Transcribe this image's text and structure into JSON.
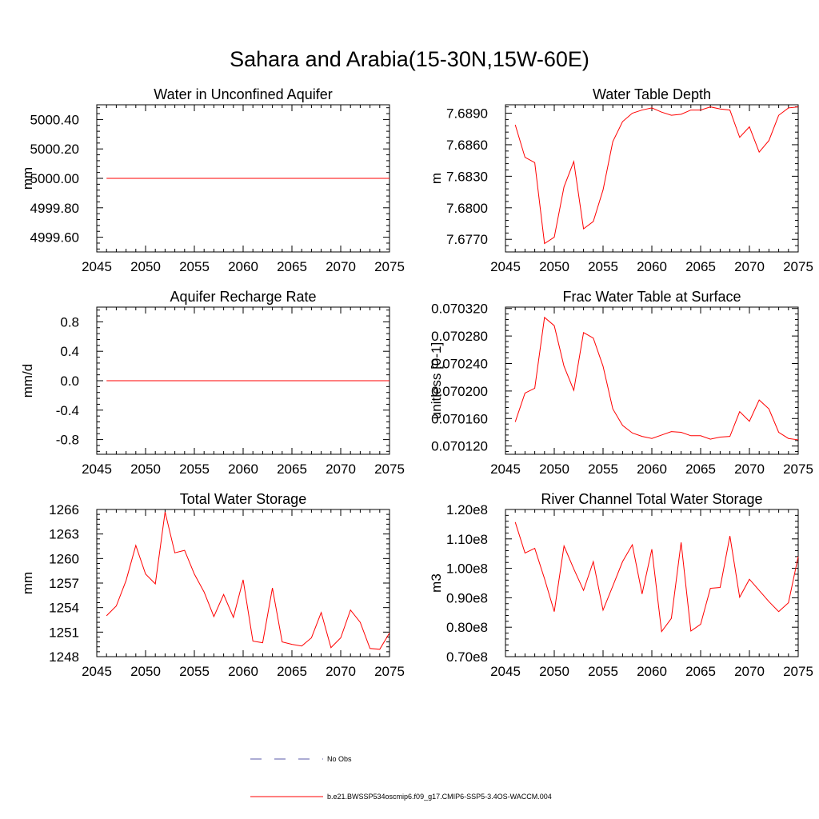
{
  "title": "Sahara and Arabia(15-30N,15W-60E)",
  "colors": {
    "model": "#ff0000",
    "obs": "#5a5aa8",
    "axis": "#000000"
  },
  "legend": [
    {
      "label": "No Obs",
      "style": "dashed",
      "color": "#5a5aa8"
    },
    {
      "label": "b.e21.BWSSP534oscmip6.f09_g17.CMIP6-SSP5-3.4OS-WACCM.004",
      "style": "solid",
      "color": "#ff0000"
    }
  ],
  "chart_data": [
    {
      "type": "line",
      "title": "Water in Unconfined Aquifer",
      "ylabel": "mm",
      "xlim": [
        2045,
        2075
      ],
      "ylim": [
        4999.5,
        5000.5
      ],
      "xticks": [
        2045,
        2050,
        2055,
        2060,
        2065,
        2070,
        2075
      ],
      "xtick_labels": [
        "2045",
        "2050",
        "2055",
        "2060",
        "2065",
        "2070",
        "2075"
      ],
      "yticks": [
        4999.6,
        4999.8,
        5000.0,
        5000.2,
        5000.4
      ],
      "ytick_labels": [
        "4999.60",
        "4999.80",
        "5000.00",
        "5000.20",
        "5000.40"
      ],
      "x": [
        2046,
        2047,
        2048,
        2049,
        2050,
        2051,
        2052,
        2053,
        2054,
        2055,
        2056,
        2057,
        2058,
        2059,
        2060,
        2061,
        2062,
        2063,
        2064,
        2065,
        2066,
        2067,
        2068,
        2069,
        2070,
        2071,
        2072,
        2073,
        2074,
        2075
      ],
      "series": [
        {
          "values": [
            5000,
            5000,
            5000,
            5000,
            5000,
            5000,
            5000,
            5000,
            5000,
            5000,
            5000,
            5000,
            5000,
            5000,
            5000,
            5000,
            5000,
            5000,
            5000,
            5000,
            5000,
            5000,
            5000,
            5000,
            5000,
            5000,
            5000,
            5000,
            5000,
            5000
          ]
        }
      ]
    },
    {
      "type": "line",
      "title": "Water Table Depth",
      "ylabel": "m",
      "xlim": [
        2045,
        2075
      ],
      "ylim": [
        7.6758,
        7.6898
      ],
      "xticks": [
        2045,
        2050,
        2055,
        2060,
        2065,
        2070,
        2075
      ],
      "xtick_labels": [
        "2045",
        "2050",
        "2055",
        "2060",
        "2065",
        "2070",
        "2075"
      ],
      "yticks": [
        7.677,
        7.68,
        7.683,
        7.686,
        7.689
      ],
      "ytick_labels": [
        "7.6770",
        "7.6800",
        "7.6830",
        "7.6860",
        "7.6890"
      ],
      "x": [
        2046,
        2047,
        2048,
        2049,
        2050,
        2051,
        2052,
        2053,
        2054,
        2055,
        2056,
        2057,
        2058,
        2059,
        2060,
        2061,
        2062,
        2063,
        2064,
        2065,
        2066,
        2067,
        2068,
        2069,
        2070,
        2071,
        2072,
        2073,
        2074,
        2075
      ],
      "series": [
        {
          "values": [
            7.6879,
            7.6848,
            7.6843,
            7.6766,
            7.6772,
            7.682,
            7.6844,
            7.678,
            7.6787,
            7.6817,
            7.6863,
            7.6882,
            7.689,
            7.6893,
            7.6895,
            7.6891,
            7.6888,
            7.6889,
            7.6893,
            7.6893,
            7.6896,
            7.6894,
            7.6893,
            7.6867,
            7.6877,
            7.6853,
            7.6864,
            7.6888,
            7.6895,
            7.6896
          ]
        }
      ]
    },
    {
      "type": "line",
      "title": "Aquifer Recharge Rate",
      "ylabel": "mm/d",
      "xlim": [
        2045,
        2075
      ],
      "ylim": [
        -1.0,
        1.0
      ],
      "xticks": [
        2045,
        2050,
        2055,
        2060,
        2065,
        2070,
        2075
      ],
      "xtick_labels": [
        "2045",
        "2050",
        "2055",
        "2060",
        "2065",
        "2070",
        "2075"
      ],
      "yticks": [
        -0.8,
        -0.4,
        0.0,
        0.4,
        0.8
      ],
      "ytick_labels": [
        "-0.8",
        "-0.4",
        "0.0",
        "0.4",
        "0.8"
      ],
      "x": [
        2046,
        2047,
        2048,
        2049,
        2050,
        2051,
        2052,
        2053,
        2054,
        2055,
        2056,
        2057,
        2058,
        2059,
        2060,
        2061,
        2062,
        2063,
        2064,
        2065,
        2066,
        2067,
        2068,
        2069,
        2070,
        2071,
        2072,
        2073,
        2074,
        2075
      ],
      "series": [
        {
          "values": [
            0,
            0,
            0,
            0,
            0,
            0,
            0,
            0,
            0,
            0,
            0,
            0,
            0,
            0,
            0,
            0,
            0,
            0,
            0,
            0,
            0,
            0,
            0,
            0,
            0,
            0,
            0,
            0,
            0,
            0
          ]
        }
      ]
    },
    {
      "type": "line",
      "title": "Frac Water Table at Surface",
      "ylabel": "unitless [0-1]",
      "xlim": [
        2045,
        2075
      ],
      "ylim": [
        0.070108,
        0.070322
      ],
      "xticks": [
        2045,
        2050,
        2055,
        2060,
        2065,
        2070,
        2075
      ],
      "xtick_labels": [
        "2045",
        "2050",
        "2055",
        "2060",
        "2065",
        "2070",
        "2075"
      ],
      "yticks": [
        0.07012,
        0.07016,
        0.0702,
        0.07024,
        0.07028,
        0.07032
      ],
      "ytick_labels": [
        "0.070120",
        "0.070160",
        "0.070200",
        "0.070240",
        "0.070280",
        "0.070320"
      ],
      "x": [
        2046,
        2047,
        2048,
        2049,
        2050,
        2051,
        2052,
        2053,
        2054,
        2055,
        2056,
        2057,
        2058,
        2059,
        2060,
        2061,
        2062,
        2063,
        2064,
        2065,
        2066,
        2067,
        2068,
        2069,
        2070,
        2071,
        2072,
        2073,
        2074,
        2075
      ],
      "series": [
        {
          "values": [
            0.070155,
            0.070197,
            0.070204,
            0.070307,
            0.070295,
            0.070236,
            0.070201,
            0.070285,
            0.070277,
            0.070236,
            0.070174,
            0.07015,
            0.070139,
            0.070134,
            0.070131,
            0.070136,
            0.070141,
            0.07014,
            0.070135,
            0.070135,
            0.07013,
            0.070133,
            0.070134,
            0.07017,
            0.070156,
            0.070187,
            0.070174,
            0.07014,
            0.070131,
            0.070129
          ]
        }
      ]
    },
    {
      "type": "line",
      "title": "Total Water Storage",
      "ylabel": "mm",
      "xlim": [
        2045,
        2075
      ],
      "ylim": [
        1248,
        1266
      ],
      "xticks": [
        2045,
        2050,
        2055,
        2060,
        2065,
        2070,
        2075
      ],
      "xtick_labels": [
        "2045",
        "2050",
        "2055",
        "2060",
        "2065",
        "2070",
        "2075"
      ],
      "yticks": [
        1248,
        1251,
        1254,
        1257,
        1260,
        1263,
        1266
      ],
      "ytick_labels": [
        "1248",
        "1251",
        "1254",
        "1257",
        "1260",
        "1263",
        "1266"
      ],
      "x": [
        2046,
        2047,
        2048,
        2049,
        2050,
        2051,
        2052,
        2053,
        2054,
        2055,
        2056,
        2057,
        2058,
        2059,
        2060,
        2061,
        2062,
        2063,
        2064,
        2065,
        2066,
        2067,
        2068,
        2069,
        2070,
        2071,
        2072,
        2073,
        2074,
        2075
      ],
      "series": [
        {
          "values": [
            1253.0,
            1254.2,
            1257.3,
            1261.6,
            1258.1,
            1256.9,
            1265.7,
            1260.7,
            1261.0,
            1258.1,
            1255.9,
            1252.9,
            1255.6,
            1252.8,
            1257.4,
            1249.9,
            1249.7,
            1256.4,
            1249.8,
            1249.5,
            1249.3,
            1250.3,
            1253.4,
            1249.1,
            1250.3,
            1253.7,
            1252.2,
            1249.0,
            1248.9,
            1250.9
          ]
        }
      ]
    },
    {
      "type": "line",
      "title": "River Channel Total Water Storage",
      "ylabel": "m3",
      "xlim": [
        2045,
        2075
      ],
      "ylim": [
        70000000.0,
        120000000.0
      ],
      "xticks": [
        2045,
        2050,
        2055,
        2060,
        2065,
        2070,
        2075
      ],
      "xtick_labels": [
        "2045",
        "2050",
        "2055",
        "2060",
        "2065",
        "2070",
        "2075"
      ],
      "yticks": [
        70000000.0,
        80000000.0,
        90000000.0,
        100000000.0,
        110000000.0,
        120000000.0
      ],
      "ytick_labels": [
        "0.70e8",
        "0.80e8",
        "0.90e8",
        "1.00e8",
        "1.10e8",
        "1.20e8"
      ],
      "x": [
        2046,
        2047,
        2048,
        2049,
        2050,
        2051,
        2052,
        2053,
        2054,
        2055,
        2056,
        2057,
        2058,
        2059,
        2060,
        2061,
        2062,
        2063,
        2064,
        2065,
        2066,
        2067,
        2068,
        2069,
        2070,
        2071,
        2072,
        2073,
        2074,
        2075
      ],
      "series": [
        {
          "values": [
            115700000.0,
            105200000.0,
            106800000.0,
            96500000.0,
            85300000.0,
            107600000.0,
            99800000.0,
            92500000.0,
            102300000.0,
            85800000.0,
            94000000.0,
            102300000.0,
            108000000.0,
            91300000.0,
            106500000.0,
            78500000.0,
            83000000.0,
            108800000.0,
            78700000.0,
            81000000.0,
            93200000.0,
            93500000.0,
            111000000.0,
            90200000.0,
            96300000.0,
            92500000.0,
            88700000.0,
            85300000.0,
            88300000.0,
            104000000.0
          ]
        }
      ]
    }
  ]
}
